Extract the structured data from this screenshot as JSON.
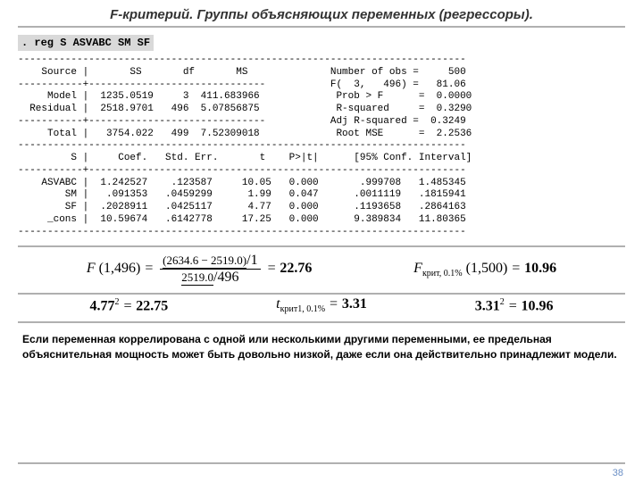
{
  "title": "F-критерий. Группы объясняющих переменных (регрессоры).",
  "command": ". reg S ASVABC SM SF",
  "reg_output": "----------------------------------------------------------------------------\n    Source |       SS       df       MS              Number of obs =     500\n-----------+------------------------------           F(  3,   496) =   81.06\n     Model |  1235.0519     3  411.683966             Prob > F      =  0.0000\n  Residual |  2518.9701   496  5.07856875             R-squared     =  0.3290\n-----------+------------------------------           Adj R-squared =  0.3249\n     Total |   3754.022   499  7.52309018             Root MSE      =  2.2536\n----------------------------------------------------------------------------\n         S |     Coef.   Std. Err.       t    P>|t|      [95% Conf. Interval]\n-----------+----------------------------------------------------------------\n    ASVABC |  1.242527    .123587     10.05   0.000       .999708   1.485345\n        SM |   .091353   .0459299      1.99   0.047      .0011119   .1815941\n        SF |  .2028911   .0425117      4.77   0.000      .1193658   .2864163\n     _cons |  10.59674   .6142778     17.25   0.000      9.389834   11.80365\n----------------------------------------------------------------------------",
  "formula1": {
    "F_args": "(1,496)",
    "num1": "(2634.6 − 2519.0)",
    "num2": "1",
    "den1": "2519.0",
    "den2": "496",
    "result": "22.76",
    "Fcrit_sub": "крит, 0.1%",
    "Fcrit_args": "(1,500)",
    "Fcrit_val": "10.96"
  },
  "formula2": {
    "a": "4.77",
    "a_sq": "22.75",
    "t_sub": "крит1, 0.1%",
    "t_val": "3.31",
    "b": "3.31",
    "b_sq": "10.96"
  },
  "body_text": "Если переменная коррелирована с одной или несколькими другими переменными, ее предельная объяснительная мощность может быть довольно низкой, даже если она действительно принадлежит модели.",
  "page": "38"
}
